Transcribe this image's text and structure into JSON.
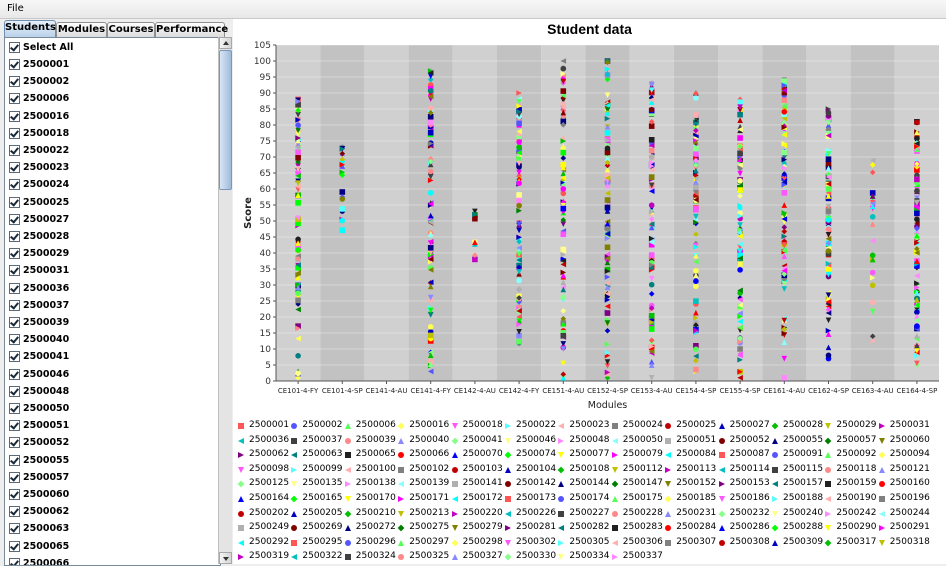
{
  "menubar": {
    "file_label": "File"
  },
  "tabs": [
    {
      "label": "Students",
      "active": true
    },
    {
      "label": "Modules",
      "active": false
    },
    {
      "label": "Courses",
      "active": false
    },
    {
      "label": "Performance",
      "active": false
    }
  ],
  "student_list": {
    "select_all_label": "Select All",
    "items": [
      "2500001",
      "2500002",
      "2500006",
      "2500016",
      "2500018",
      "2500022",
      "2500023",
      "2500024",
      "2500025",
      "2500027",
      "2500028",
      "2500029",
      "2500031",
      "2500036",
      "2500037",
      "2500039",
      "2500040",
      "2500041",
      "2500046",
      "2500048",
      "2500050",
      "2500051",
      "2500052",
      "2500055",
      "2500057",
      "2500060",
      "2500062",
      "2500063",
      "2500065",
      "2500066"
    ]
  },
  "chart_data": {
    "type": "scatter",
    "title": "Student data",
    "xlabel": "Modules",
    "ylabel": "Score",
    "ylim": [
      0,
      105
    ],
    "yticks": [
      0,
      5,
      10,
      15,
      20,
      25,
      30,
      35,
      40,
      45,
      50,
      55,
      60,
      65,
      70,
      75,
      80,
      85,
      90,
      95,
      100,
      105
    ],
    "categories": [
      "CE101-4-FY",
      "CE101-4-SP",
      "CE141-4-AU",
      "CE141-4-FY",
      "CE142-4-AU",
      "CE142-4-FY",
      "CE151-4-AU",
      "CE152-4-SP",
      "CE153-4-AU",
      "CE154-4-SP",
      "CE155-4-SP",
      "CE161-4-AU",
      "CE162-4-SP",
      "CE163-4-AU",
      "CE164-4-SP"
    ],
    "score_ranges": [
      [
        1,
        88
      ],
      [
        47,
        73
      ],
      null,
      [
        3,
        97
      ],
      [
        38,
        53
      ],
      [
        12,
        90
      ],
      [
        1,
        100
      ],
      [
        1,
        100
      ],
      [
        1,
        93
      ],
      [
        3,
        90
      ],
      [
        1,
        88
      ],
      [
        1,
        94
      ],
      [
        7,
        85
      ],
      [
        13,
        69
      ],
      [
        5,
        81
      ]
    ],
    "legend": [
      "2500001",
      "2500002",
      "2500006",
      "2500016",
      "2500018",
      "2500022",
      "2500023",
      "2500024",
      "2500025",
      "2500027",
      "2500028",
      "2500029",
      "2500031",
      "2500036",
      "2500037",
      "2500039",
      "2500040",
      "2500041",
      "2500046",
      "2500048",
      "2500050",
      "2500051",
      "2500052",
      "2500055",
      "2500057",
      "2500060",
      "2500062",
      "2500063",
      "2500065",
      "2500066",
      "2500070",
      "2500074",
      "2500077",
      "2500079",
      "2500084",
      "2500087",
      "2500091",
      "2500092",
      "2500094",
      "2500098",
      "2500099",
      "2500100",
      "2500102",
      "2500103",
      "2500104",
      "2500108",
      "2500112",
      "2500113",
      "2500114",
      "2500115",
      "2500118",
      "2500121",
      "2500125",
      "2500135",
      "2500138",
      "2500139",
      "2500141",
      "2500142",
      "2500144",
      "2500147",
      "2500152",
      "2500153",
      "2500157",
      "2500159",
      "2500160",
      "2500164",
      "2500165",
      "2500170",
      "2500171",
      "2500172",
      "2500173",
      "2500174",
      "2500175",
      "2500185",
      "2500186",
      "2500188",
      "2500190",
      "2500196",
      "2500202",
      "2500205",
      "2500210",
      "2500213",
      "2500220",
      "2500226",
      "2500227",
      "2500228",
      "2500231",
      "2500232",
      "2500240",
      "2500242",
      "2500244",
      "2500249",
      "2500269",
      "2500272",
      "2500275",
      "2500279",
      "2500281",
      "2500282",
      "2500283",
      "2500284",
      "2500286",
      "2500288",
      "2500290",
      "2500291",
      "2500292",
      "2500295",
      "2500296",
      "2500297",
      "2500298",
      "2500302",
      "2500305",
      "2500306",
      "2500307",
      "2500308",
      "2500309",
      "2500317",
      "2500318",
      "2500319",
      "2500322",
      "2500324",
      "2500325",
      "2500327",
      "2500330",
      "2500334",
      "2500337"
    ],
    "series_colors": [
      "#ff5555",
      "#5555ff",
      "#55ff55",
      "#ffff55",
      "#ff55ff",
      "#55ffff",
      "#ffafaf",
      "#808080",
      "#c00000",
      "#0000c0",
      "#00c000",
      "#c0c000",
      "#c000c0",
      "#00c0c0",
      "#404040",
      "#ff8888",
      "#8888ff",
      "#88ff88",
      "#ffff88",
      "#ff88ff",
      "#88ffff",
      "#b0b0b0",
      "#800000",
      "#000080",
      "#008000",
      "#808000",
      "#800080",
      "#008080",
      "#202020",
      "#ff0000",
      "#0000ff",
      "#00ff00",
      "#ffff00",
      "#ff00ff",
      "#00ffff"
    ],
    "grid": true
  }
}
